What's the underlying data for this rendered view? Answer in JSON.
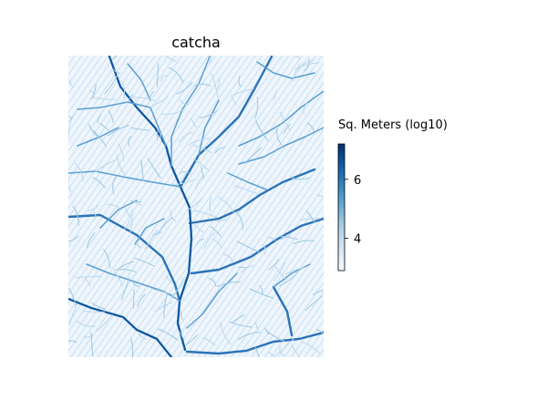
{
  "chart_data": {
    "type": "heatmap",
    "title": "catcha",
    "colormap": "Blues",
    "colorbar": {
      "label": "Sq. Meters (log10)",
      "range": [
        2.9,
        7.2
      ],
      "ticks": [
        4,
        6
      ],
      "tick_labels": [
        "4",
        "6"
      ]
    },
    "axes_visible": false,
    "description_of_field": "log10 contributing drainage area over a dendritic river network"
  }
}
